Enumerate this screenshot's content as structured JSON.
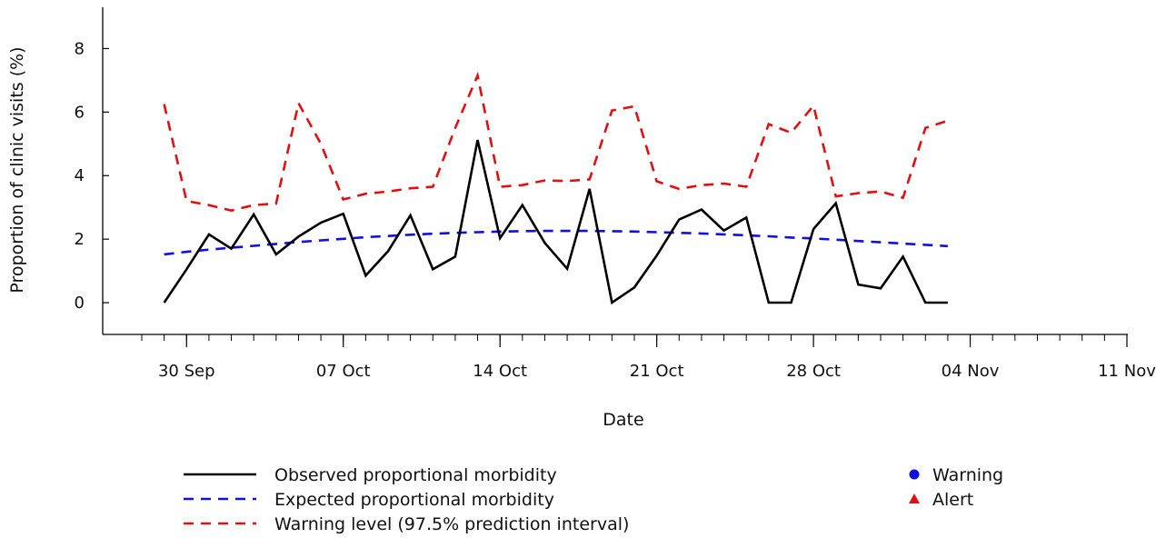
{
  "chart_data": {
    "type": "line",
    "xlabel": "Date",
    "ylabel": "Proportion of clinic visits (%)",
    "x_ticks": [
      "30 Sep",
      "07 Oct",
      "14 Oct",
      "21 Oct",
      "28 Oct",
      "04 Nov",
      "11 Nov"
    ],
    "y_ticks": [
      0,
      2,
      4,
      6,
      8
    ],
    "xlim": [
      "2012-09-28",
      "2012-11-11"
    ],
    "ylim": [
      -1,
      9.3
    ],
    "x": [
      "2012-09-29",
      "2012-09-30",
      "2012-10-01",
      "2012-10-02",
      "2012-10-03",
      "2012-10-04",
      "2012-10-05",
      "2012-10-06",
      "2012-10-07",
      "2012-10-08",
      "2012-10-09",
      "2012-10-10",
      "2012-10-11",
      "2012-10-12",
      "2012-10-13",
      "2012-10-14",
      "2012-10-15",
      "2012-10-16",
      "2012-10-17",
      "2012-10-18",
      "2012-10-19",
      "2012-10-20",
      "2012-10-21",
      "2012-10-22",
      "2012-10-23",
      "2012-10-24",
      "2012-10-25",
      "2012-10-26",
      "2012-10-27",
      "2012-10-28",
      "2012-10-29",
      "2012-10-30",
      "2012-10-31",
      "2012-11-01",
      "2012-11-02",
      "2012-11-03"
    ],
    "series": [
      {
        "name": "Observed proportional morbidity",
        "color": "#000000",
        "style": "solid",
        "values": [
          0,
          1.05,
          2.15,
          1.7,
          2.78,
          1.52,
          2.08,
          2.52,
          2.8,
          0.85,
          1.62,
          2.75,
          1.05,
          1.45,
          5.12,
          2.03,
          3.07,
          1.88,
          1.07,
          3.58,
          0,
          0.48,
          1.48,
          2.62,
          2.93,
          2.27,
          2.68,
          0,
          0,
          2.32,
          3.13,
          0.57,
          0.45,
          1.45,
          0,
          0
        ]
      },
      {
        "name": "Expected proportional morbidity",
        "color": "#1010e0",
        "style": "dashed",
        "values": [
          1.52,
          1.6,
          1.67,
          1.73,
          1.79,
          1.85,
          1.91,
          1.96,
          2.01,
          2.06,
          2.1,
          2.14,
          2.17,
          2.2,
          2.22,
          2.24,
          2.25,
          2.26,
          2.26,
          2.26,
          2.25,
          2.24,
          2.22,
          2.2,
          2.18,
          2.15,
          2.12,
          2.09,
          2.05,
          2.02,
          1.98,
          1.94,
          1.9,
          1.86,
          1.82,
          1.78
        ]
      },
      {
        "name": "Warning level (97.5% prediction interval)",
        "color": "#e01010",
        "style": "dashed",
        "values": [
          6.25,
          3.2,
          3.07,
          2.9,
          3.07,
          3.12,
          6.28,
          5.0,
          3.25,
          3.43,
          3.5,
          3.6,
          3.65,
          5.5,
          7.15,
          3.65,
          3.7,
          3.85,
          3.83,
          3.88,
          6.05,
          6.18,
          3.82,
          3.58,
          3.7,
          3.75,
          3.65,
          5.62,
          5.35,
          6.2,
          3.35,
          3.45,
          3.5,
          3.3,
          5.5,
          5.73
        ]
      }
    ],
    "markers": [
      {
        "name": "Warning",
        "shape": "circle",
        "color": "#1010e0"
      },
      {
        "name": "Alert",
        "shape": "triangle",
        "color": "#e01010"
      }
    ],
    "grid": false,
    "legend_position": "bottom"
  }
}
